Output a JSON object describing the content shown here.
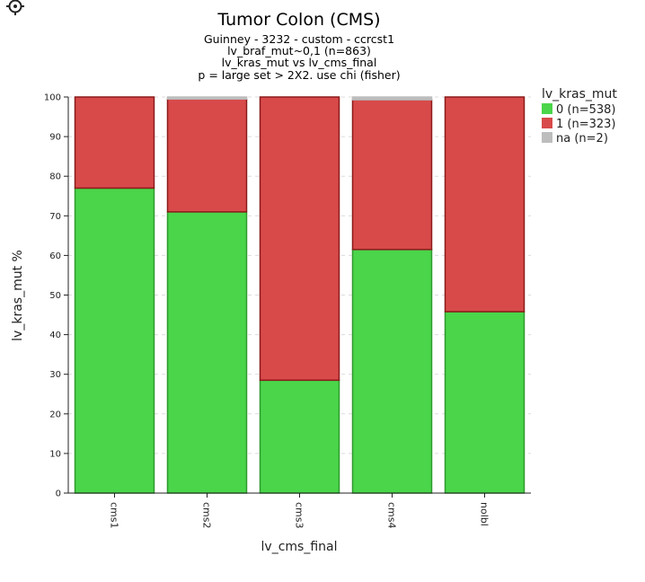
{
  "toolbar": {
    "settings_icon": "gear-icon"
  },
  "chart_data": {
    "type": "bar",
    "stacked": true,
    "title": "Tumor Colon (CMS)",
    "subtitle_lines": [
      "Guinney - 3232 - custom - ccrcst1",
      "lv_braf_mut~0,1 (n=863)",
      "lv_kras_mut vs lv_cms_final",
      "p = large set > 2X2. use chi (fisher)"
    ],
    "xlabel": "lv_cms_final",
    "ylabel": "lv_kras_mut %",
    "ylim": [
      0,
      100
    ],
    "yticks": [
      0,
      10,
      20,
      30,
      40,
      50,
      60,
      70,
      80,
      90,
      100
    ],
    "grid": true,
    "categories": [
      "cms1",
      "cms2",
      "cms3",
      "cms4",
      "nolbl"
    ],
    "legend": {
      "title": "lv_kras_mut",
      "placement": "top-right",
      "entries": [
        "0 (n=538)",
        "1 (n=323)",
        "na (n=2)"
      ]
    },
    "series": [
      {
        "name": "0 (n=538)",
        "color": "#4ad54a",
        "edge": "#2e9a2e",
        "values": [
          77,
          71,
          28.5,
          61.5,
          45.8
        ]
      },
      {
        "name": "1 (n=323)",
        "color": "#d84a4a",
        "edge": "#8b1a1a",
        "values": [
          23,
          28.5,
          71.5,
          37.8,
          54.2
        ]
      },
      {
        "name": "na (n=2)",
        "color": "#bdbdbd",
        "edge": "#bdbdbd",
        "values": [
          0,
          0.5,
          0,
          0.7,
          0
        ]
      }
    ]
  }
}
